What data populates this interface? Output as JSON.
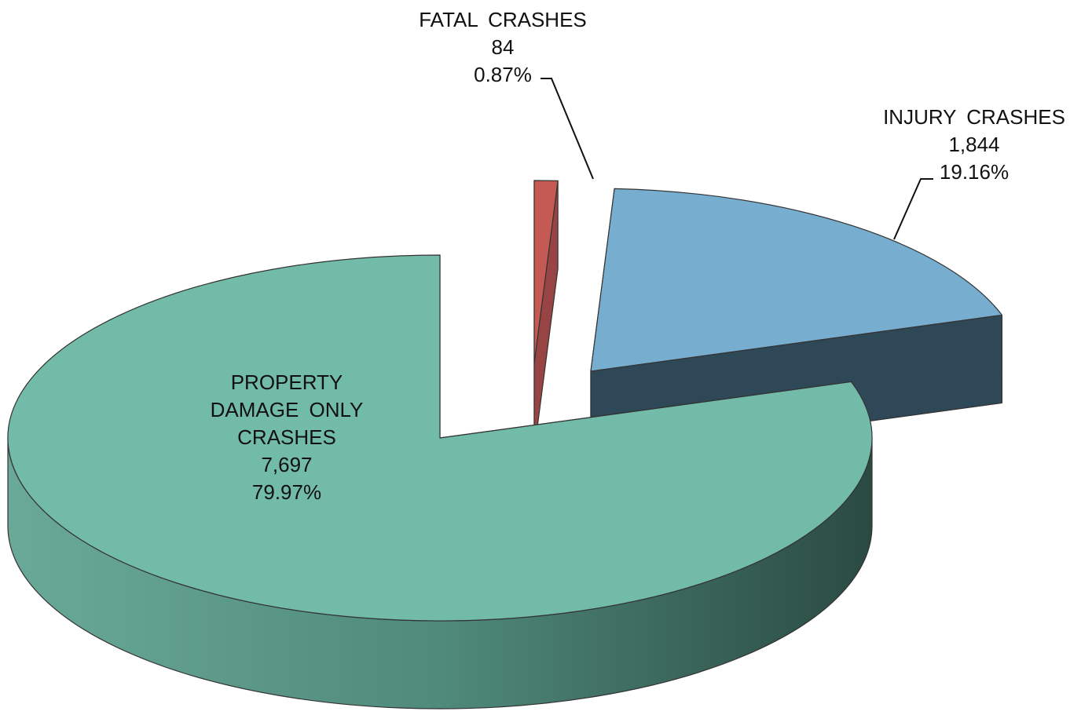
{
  "chart_data": {
    "type": "pie3d",
    "categories": [
      "FATAL CRASHES",
      "INJURY CRASHES",
      "PROPERTY DAMAGE ONLY CRASHES"
    ],
    "values": [
      84,
      1844,
      7697
    ],
    "value_labels": [
      "84",
      "1,844",
      "7,697"
    ],
    "percentages": [
      0.87,
      19.16,
      79.97
    ],
    "percentage_labels": [
      "0.87%",
      "19.16%",
      "79.97%"
    ],
    "colors": [
      "#c55a55",
      "#77adcf",
      "#72bba8"
    ],
    "side_colors": [
      "#984444",
      "#2f4858",
      "#5a9a88"
    ]
  }
}
